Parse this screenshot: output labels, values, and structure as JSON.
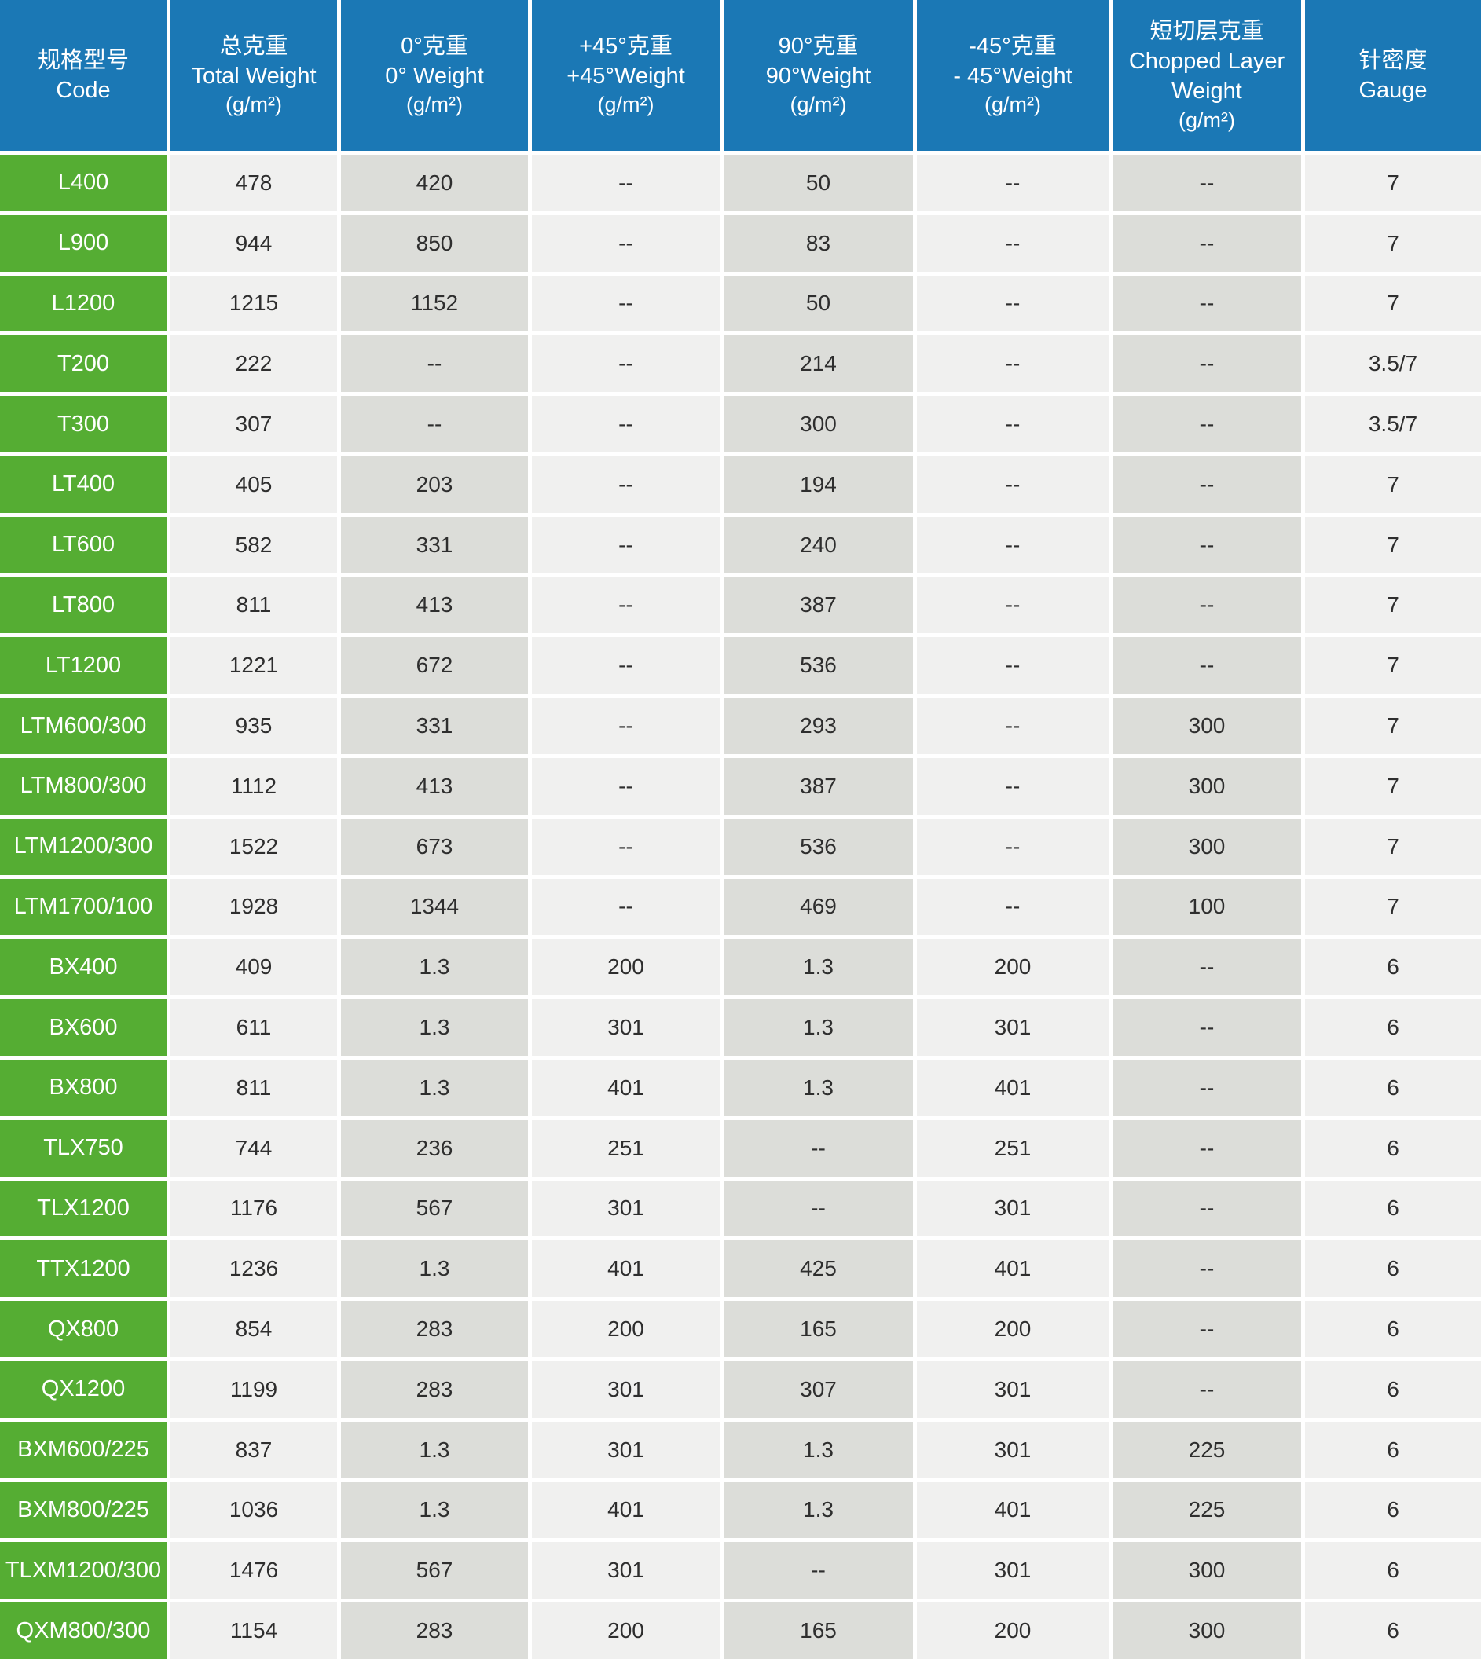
{
  "colors": {
    "header_blue": "#1b78b5",
    "code_green": "#55ad33",
    "cell_light_gray": "#f0f0ef",
    "cell_dark_gray": "#dcddd9",
    "header_text": "#ffffff",
    "cell_text": "#2e2e2e",
    "grid_gap_white": "#ffffff"
  },
  "table": {
    "columns": [
      {
        "cn": "规格型号",
        "en": "Code",
        "unit": ""
      },
      {
        "cn": "总克重",
        "en": "Total Weight",
        "unit": "(g/m²)"
      },
      {
        "cn": "0°克重",
        "en": "0° Weight",
        "unit": "(g/m²)"
      },
      {
        "cn": "+45°克重",
        "en": "+45°Weight",
        "unit": "(g/m²)"
      },
      {
        "cn": "90°克重",
        "en": "90°Weight",
        "unit": "(g/m²)"
      },
      {
        "cn": "-45°克重",
        "en": "- 45°Weight",
        "unit": "(g/m²)"
      },
      {
        "cn": "短切层克重",
        "en": "Chopped Layer Weight",
        "unit": "(g/m²)"
      },
      {
        "cn": "针密度",
        "en": "Gauge",
        "unit": ""
      }
    ],
    "rows": [
      [
        "L400",
        "478",
        "420",
        "--",
        "50",
        "--",
        "--",
        "7"
      ],
      [
        "L900",
        "944",
        "850",
        "--",
        "83",
        "--",
        "--",
        "7"
      ],
      [
        "L1200",
        "1215",
        "1152",
        "--",
        "50",
        "--",
        "--",
        "7"
      ],
      [
        "T200",
        "222",
        "--",
        "--",
        "214",
        "--",
        "--",
        "3.5/7"
      ],
      [
        "T300",
        "307",
        "--",
        "--",
        "300",
        "--",
        "--",
        "3.5/7"
      ],
      [
        "LT400",
        "405",
        "203",
        "--",
        "194",
        "--",
        "--",
        "7"
      ],
      [
        "LT600",
        "582",
        "331",
        "--",
        "240",
        "--",
        "--",
        "7"
      ],
      [
        "LT800",
        "811",
        "413",
        "--",
        "387",
        "--",
        "--",
        "7"
      ],
      [
        "LT1200",
        "1221",
        "672",
        "--",
        "536",
        "--",
        "--",
        "7"
      ],
      [
        "LTM600/300",
        "935",
        "331",
        "--",
        "293",
        "--",
        "300",
        "7"
      ],
      [
        "LTM800/300",
        "1112",
        "413",
        "--",
        "387",
        "--",
        "300",
        "7"
      ],
      [
        "LTM1200/300",
        "1522",
        "673",
        "--",
        "536",
        "--",
        "300",
        "7"
      ],
      [
        "LTM1700/100",
        "1928",
        "1344",
        "--",
        "469",
        "--",
        "100",
        "7"
      ],
      [
        "BX400",
        "409",
        "1.3",
        "200",
        "1.3",
        "200",
        "--",
        "6"
      ],
      [
        "BX600",
        "611",
        "1.3",
        "301",
        "1.3",
        "301",
        "--",
        "6"
      ],
      [
        "BX800",
        "811",
        "1.3",
        "401",
        "1.3",
        "401",
        "--",
        "6"
      ],
      [
        "TLX750",
        "744",
        "236",
        "251",
        "--",
        "251",
        "--",
        "6"
      ],
      [
        "TLX1200",
        "1176",
        "567",
        "301",
        "--",
        "301",
        "--",
        "6"
      ],
      [
        "TTX1200",
        "1236",
        "1.3",
        "401",
        "425",
        "401",
        "--",
        "6"
      ],
      [
        "QX800",
        "854",
        "283",
        "200",
        "165",
        "200",
        "--",
        "6"
      ],
      [
        "QX1200",
        "1199",
        "283",
        "301",
        "307",
        "301",
        "--",
        "6"
      ],
      [
        "BXM600/225",
        "837",
        "1.3",
        "301",
        "1.3",
        "301",
        "225",
        "6"
      ],
      [
        "BXM800/225",
        "1036",
        "1.3",
        "401",
        "1.3",
        "401",
        "225",
        "6"
      ],
      [
        "TLXM1200/300",
        "1476",
        "567",
        "301",
        "--",
        "301",
        "300",
        "6"
      ],
      [
        "QXM800/300",
        "1154",
        "283",
        "200",
        "165",
        "200",
        "300",
        "6"
      ]
    ]
  }
}
